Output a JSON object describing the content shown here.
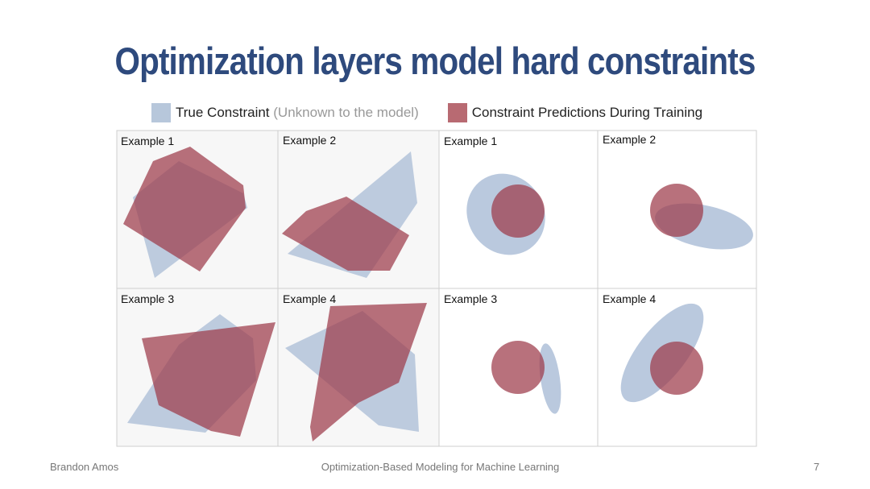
{
  "title": "Optimization layers model hard constraints",
  "legend": {
    "true_label": "True Constraint",
    "true_note": "(Unknown to the model)",
    "pred_label": "Constraint Predictions During Training"
  },
  "colors": {
    "true_constraint": "#a9bcd6",
    "prediction": "#9c3a4a",
    "title": "#2e4a7d"
  },
  "panels": {
    "polytope": [
      "Example 1",
      "Example 2",
      "Example 3",
      "Example 4"
    ],
    "ellipsoid": [
      "Example 1",
      "Example 2",
      "Example 3",
      "Example 4"
    ]
  },
  "footer": {
    "author": "Brandon Amos",
    "talk": "Optimization-Based Modeling for Machine Learning",
    "page": "7"
  }
}
